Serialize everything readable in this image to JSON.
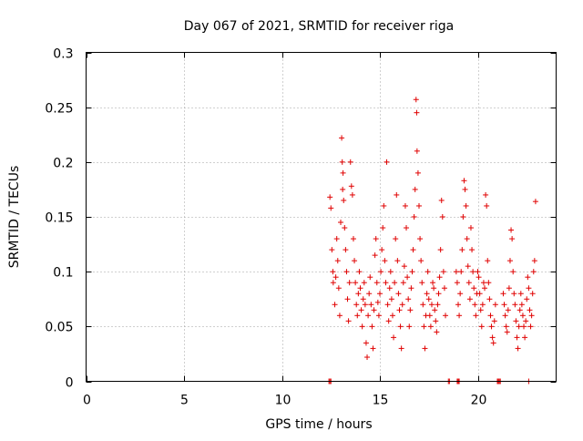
{
  "chart_data": {
    "type": "scatter",
    "title": "Day 067 of 2021, SRMTID for receiver riga",
    "xlabel": "GPS time / hours",
    "ylabel": "SRMTID / TECUs",
    "xlim": [
      0,
      24
    ],
    "ylim": [
      0,
      0.3
    ],
    "xticks": [
      "0",
      "5",
      "10",
      "15",
      "20"
    ],
    "yticks": [
      "0",
      "0.05",
      "0.1",
      "0.15",
      "0.2",
      "0.25",
      "0.3"
    ],
    "grid": true,
    "marker": "plus",
    "color": "#e00000",
    "series": [
      {
        "points": [
          [
            12.45,
            0.168
          ],
          [
            12.5,
            0.158
          ],
          [
            12.55,
            0.12
          ],
          [
            12.6,
            0.1
          ],
          [
            12.62,
            0.09
          ],
          [
            12.7,
            0.07
          ],
          [
            12.75,
            0.095
          ],
          [
            12.8,
            0.13
          ],
          [
            12.85,
            0.11
          ],
          [
            12.9,
            0.085
          ],
          [
            12.95,
            0.06
          ],
          [
            13.0,
            0.145
          ],
          [
            13.05,
            0.222
          ],
          [
            13.08,
            0.2
          ],
          [
            13.1,
            0.175
          ],
          [
            13.12,
            0.19
          ],
          [
            13.15,
            0.165
          ],
          [
            13.2,
            0.14
          ],
          [
            13.25,
            0.12
          ],
          [
            13.3,
            0.1
          ],
          [
            13.35,
            0.075
          ],
          [
            13.4,
            0.055
          ],
          [
            13.45,
            0.09
          ],
          [
            13.5,
            0.2
          ],
          [
            13.55,
            0.178
          ],
          [
            13.6,
            0.17
          ],
          [
            13.65,
            0.13
          ],
          [
            13.7,
            0.11
          ],
          [
            13.75,
            0.09
          ],
          [
            13.8,
            0.07
          ],
          [
            13.85,
            0.06
          ],
          [
            13.9,
            0.08
          ],
          [
            13.95,
            0.1
          ],
          [
            14.0,
            0.085
          ],
          [
            14.05,
            0.065
          ],
          [
            14.1,
            0.05
          ],
          [
            14.15,
            0.075
          ],
          [
            14.2,
            0.09
          ],
          [
            14.25,
            0.07
          ],
          [
            14.3,
            0.035
          ],
          [
            14.35,
            0.022
          ],
          [
            14.4,
            0.06
          ],
          [
            14.45,
            0.08
          ],
          [
            14.5,
            0.095
          ],
          [
            14.55,
            0.07
          ],
          [
            14.6,
            0.05
          ],
          [
            14.65,
            0.03
          ],
          [
            14.7,
            0.065
          ],
          [
            14.75,
            0.115
          ],
          [
            14.8,
            0.13
          ],
          [
            14.85,
            0.09
          ],
          [
            14.9,
            0.072
          ],
          [
            14.95,
            0.06
          ],
          [
            15.0,
            0.08
          ],
          [
            15.05,
            0.1
          ],
          [
            15.1,
            0.12
          ],
          [
            15.15,
            0.14
          ],
          [
            15.2,
            0.16
          ],
          [
            15.25,
            0.11
          ],
          [
            15.3,
            0.09
          ],
          [
            15.35,
            0.2
          ],
          [
            15.4,
            0.07
          ],
          [
            15.45,
            0.055
          ],
          [
            15.5,
            0.085
          ],
          [
            15.55,
            0.1
          ],
          [
            15.6,
            0.075
          ],
          [
            15.65,
            0.06
          ],
          [
            15.7,
            0.04
          ],
          [
            15.75,
            0.09
          ],
          [
            15.8,
            0.13
          ],
          [
            15.85,
            0.17
          ],
          [
            15.9,
            0.11
          ],
          [
            15.95,
            0.08
          ],
          [
            16.0,
            0.065
          ],
          [
            16.05,
            0.05
          ],
          [
            16.1,
            0.03
          ],
          [
            16.15,
            0.07
          ],
          [
            16.2,
            0.09
          ],
          [
            16.25,
            0.105
          ],
          [
            16.3,
            0.16
          ],
          [
            16.35,
            0.14
          ],
          [
            16.4,
            0.095
          ],
          [
            16.45,
            0.075
          ],
          [
            16.5,
            0.05
          ],
          [
            16.55,
            0.065
          ],
          [
            16.6,
            0.085
          ],
          [
            16.65,
            0.1
          ],
          [
            16.7,
            0.12
          ],
          [
            16.75,
            0.15
          ],
          [
            16.8,
            0.175
          ],
          [
            16.85,
            0.257
          ],
          [
            16.88,
            0.245
          ],
          [
            16.9,
            0.21
          ],
          [
            16.95,
            0.19
          ],
          [
            17.0,
            0.16
          ],
          [
            17.05,
            0.13
          ],
          [
            17.1,
            0.11
          ],
          [
            17.15,
            0.09
          ],
          [
            17.2,
            0.07
          ],
          [
            17.25,
            0.05
          ],
          [
            17.3,
            0.03
          ],
          [
            17.35,
            0.06
          ],
          [
            17.4,
            0.08
          ],
          [
            17.45,
            0.1
          ],
          [
            17.5,
            0.075
          ],
          [
            17.55,
            0.06
          ],
          [
            17.6,
            0.05
          ],
          [
            17.65,
            0.07
          ],
          [
            17.7,
            0.09
          ],
          [
            17.75,
            0.085
          ],
          [
            17.8,
            0.065
          ],
          [
            17.85,
            0.055
          ],
          [
            17.9,
            0.045
          ],
          [
            17.95,
            0.07
          ],
          [
            18.0,
            0.08
          ],
          [
            18.05,
            0.095
          ],
          [
            18.1,
            0.12
          ],
          [
            18.15,
            0.165
          ],
          [
            18.2,
            0.15
          ],
          [
            18.25,
            0.1
          ],
          [
            18.3,
            0.085
          ],
          [
            18.35,
            0.06
          ],
          [
            18.9,
            0.1
          ],
          [
            18.95,
            0.09
          ],
          [
            19.0,
            0.07
          ],
          [
            19.05,
            0.06
          ],
          [
            19.1,
            0.08
          ],
          [
            19.15,
            0.1
          ],
          [
            19.2,
            0.12
          ],
          [
            19.25,
            0.15
          ],
          [
            19.3,
            0.183
          ],
          [
            19.35,
            0.175
          ],
          [
            19.4,
            0.16
          ],
          [
            19.45,
            0.13
          ],
          [
            19.5,
            0.105
          ],
          [
            19.55,
            0.09
          ],
          [
            19.6,
            0.075
          ],
          [
            19.65,
            0.14
          ],
          [
            19.7,
            0.12
          ],
          [
            19.75,
            0.1
          ],
          [
            19.8,
            0.085
          ],
          [
            19.85,
            0.07
          ],
          [
            19.9,
            0.06
          ],
          [
            19.95,
            0.08
          ],
          [
            20.0,
            0.1
          ],
          [
            20.05,
            0.095
          ],
          [
            20.1,
            0.08
          ],
          [
            20.15,
            0.065
          ],
          [
            20.2,
            0.05
          ],
          [
            20.25,
            0.07
          ],
          [
            20.3,
            0.09
          ],
          [
            20.35,
            0.085
          ],
          [
            20.4,
            0.17
          ],
          [
            20.45,
            0.16
          ],
          [
            20.5,
            0.11
          ],
          [
            20.55,
            0.09
          ],
          [
            20.6,
            0.075
          ],
          [
            20.65,
            0.06
          ],
          [
            20.7,
            0.05
          ],
          [
            20.75,
            0.04
          ],
          [
            20.8,
            0.035
          ],
          [
            20.85,
            0.055
          ],
          [
            20.9,
            0.07
          ],
          [
            21.3,
            0.08
          ],
          [
            21.35,
            0.07
          ],
          [
            21.4,
            0.06
          ],
          [
            21.45,
            0.05
          ],
          [
            21.5,
            0.045
          ],
          [
            21.55,
            0.065
          ],
          [
            21.6,
            0.085
          ],
          [
            21.65,
            0.11
          ],
          [
            21.7,
            0.138
          ],
          [
            21.75,
            0.13
          ],
          [
            21.8,
            0.1
          ],
          [
            21.85,
            0.08
          ],
          [
            21.9,
            0.07
          ],
          [
            21.95,
            0.055
          ],
          [
            22.0,
            0.04
          ],
          [
            22.05,
            0.03
          ],
          [
            22.1,
            0.05
          ],
          [
            22.15,
            0.065
          ],
          [
            22.2,
            0.08
          ],
          [
            22.25,
            0.07
          ],
          [
            22.3,
            0.06
          ],
          [
            22.35,
            0.05
          ],
          [
            22.4,
            0.04
          ],
          [
            22.45,
            0.055
          ],
          [
            22.5,
            0.075
          ],
          [
            22.55,
            0.095
          ],
          [
            22.6,
            0.085
          ],
          [
            22.65,
            0.065
          ],
          [
            22.7,
            0.05
          ],
          [
            22.75,
            0.06
          ],
          [
            22.8,
            0.08
          ],
          [
            22.85,
            0.1
          ],
          [
            22.9,
            0.11
          ],
          [
            22.95,
            0.164
          ],
          [
            12.4,
            0.0
          ],
          [
            12.45,
            0.0
          ],
          [
            12.5,
            0.0
          ],
          [
            18.5,
            0.0
          ],
          [
            18.55,
            0.0
          ],
          [
            18.95,
            0.0
          ],
          [
            19.0,
            0.0
          ],
          [
            19.05,
            0.0
          ],
          [
            21.0,
            0.0
          ],
          [
            21.05,
            0.0
          ],
          [
            21.1,
            0.0
          ],
          [
            21.15,
            0.0
          ],
          [
            22.6,
            0.0
          ]
        ]
      }
    ]
  }
}
